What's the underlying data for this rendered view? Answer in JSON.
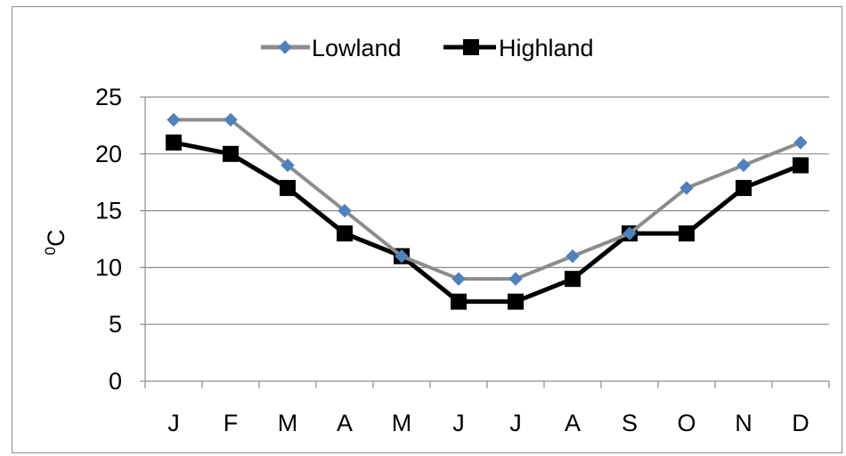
{
  "chart_data": {
    "type": "line",
    "categories": [
      "J",
      "F",
      "M",
      "A",
      "M",
      "J",
      "J",
      "A",
      "S",
      "O",
      "N",
      "D"
    ],
    "series": [
      {
        "name": "Lowland",
        "values": [
          23,
          23,
          19,
          15,
          11,
          9,
          9,
          11,
          13,
          17,
          19,
          21
        ],
        "color": "#8c8c8c",
        "marker": "diamond",
        "marker_color": "#4f81bd"
      },
      {
        "name": "Highland",
        "values": [
          21,
          20,
          17,
          13,
          11,
          7,
          7,
          9,
          13,
          13,
          17,
          19
        ],
        "color": "#000000",
        "marker": "square",
        "marker_color": "#000000"
      }
    ],
    "ylabel_base": "C",
    "ylabel_sup": "0",
    "ylim": [
      0,
      25
    ],
    "yticks": [
      0,
      5,
      10,
      15,
      20,
      25
    ],
    "grid": true,
    "legend_position": "top"
  }
}
